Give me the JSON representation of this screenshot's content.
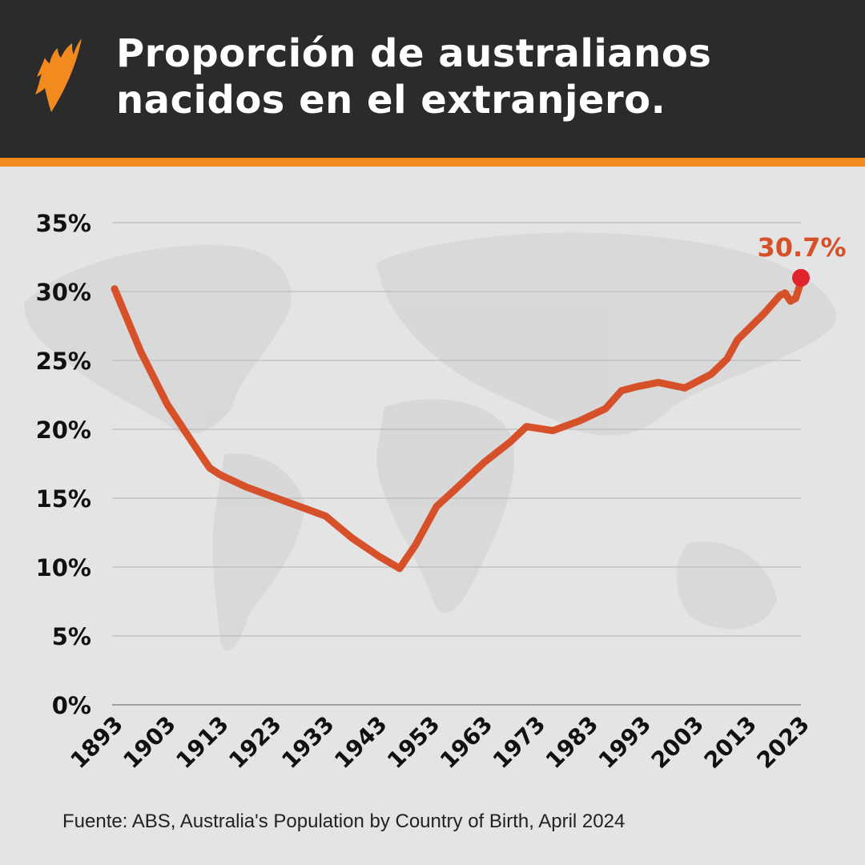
{
  "header": {
    "title_line1": "Proporción de australianos",
    "title_line2": "nacidos en el extranjero.",
    "logo": "SBS logo",
    "accent_color": "#f28a20",
    "background_color": "#2b2b2b"
  },
  "chart_data": {
    "type": "line",
    "title": "Proporción de australianos nacidos en el extranjero.",
    "xlabel": "",
    "ylabel": "",
    "xlim": [
      1893,
      2023
    ],
    "ylim": [
      0,
      35
    ],
    "grid": true,
    "x_ticks": [
      "1893",
      "1903",
      "1913",
      "1923",
      "1933",
      "1943",
      "1953",
      "1963",
      "1973",
      "1983",
      "1993",
      "2003",
      "2013",
      "2023"
    ],
    "y_ticks": [
      "0%",
      "5%",
      "10%",
      "15%",
      "20%",
      "25%",
      "30%",
      "35%"
    ],
    "line_color": "#d6502a",
    "x": [
      1893,
      1898,
      1903,
      1908,
      1911,
      1913,
      1918,
      1923,
      1928,
      1933,
      1938,
      1943,
      1947,
      1950,
      1954,
      1958,
      1963,
      1968,
      1971,
      1976,
      1981,
      1986,
      1989,
      1992,
      1996,
      2001,
      2006,
      2009,
      2011,
      2016,
      2019,
      2020,
      2021,
      2022,
      2023
    ],
    "y": [
      30.2,
      25.6,
      21.8,
      18.9,
      17.2,
      16.7,
      15.8,
      15.1,
      14.4,
      13.7,
      12.1,
      10.8,
      9.9,
      11.6,
      14.4,
      15.8,
      17.6,
      19.1,
      20.2,
      19.9,
      20.6,
      21.5,
      22.8,
      23.1,
      23.4,
      23.0,
      24.0,
      25.1,
      26.5,
      28.4,
      29.7,
      29.9,
      29.3,
      29.5,
      30.7
    ],
    "annotation": {
      "label": "30.7%",
      "x": 2023,
      "y": 30.7,
      "color": "#e0242d"
    }
  },
  "footer": {
    "source": "Fuente: ABS, Australia's Population by Country of Birth, April 2024"
  }
}
